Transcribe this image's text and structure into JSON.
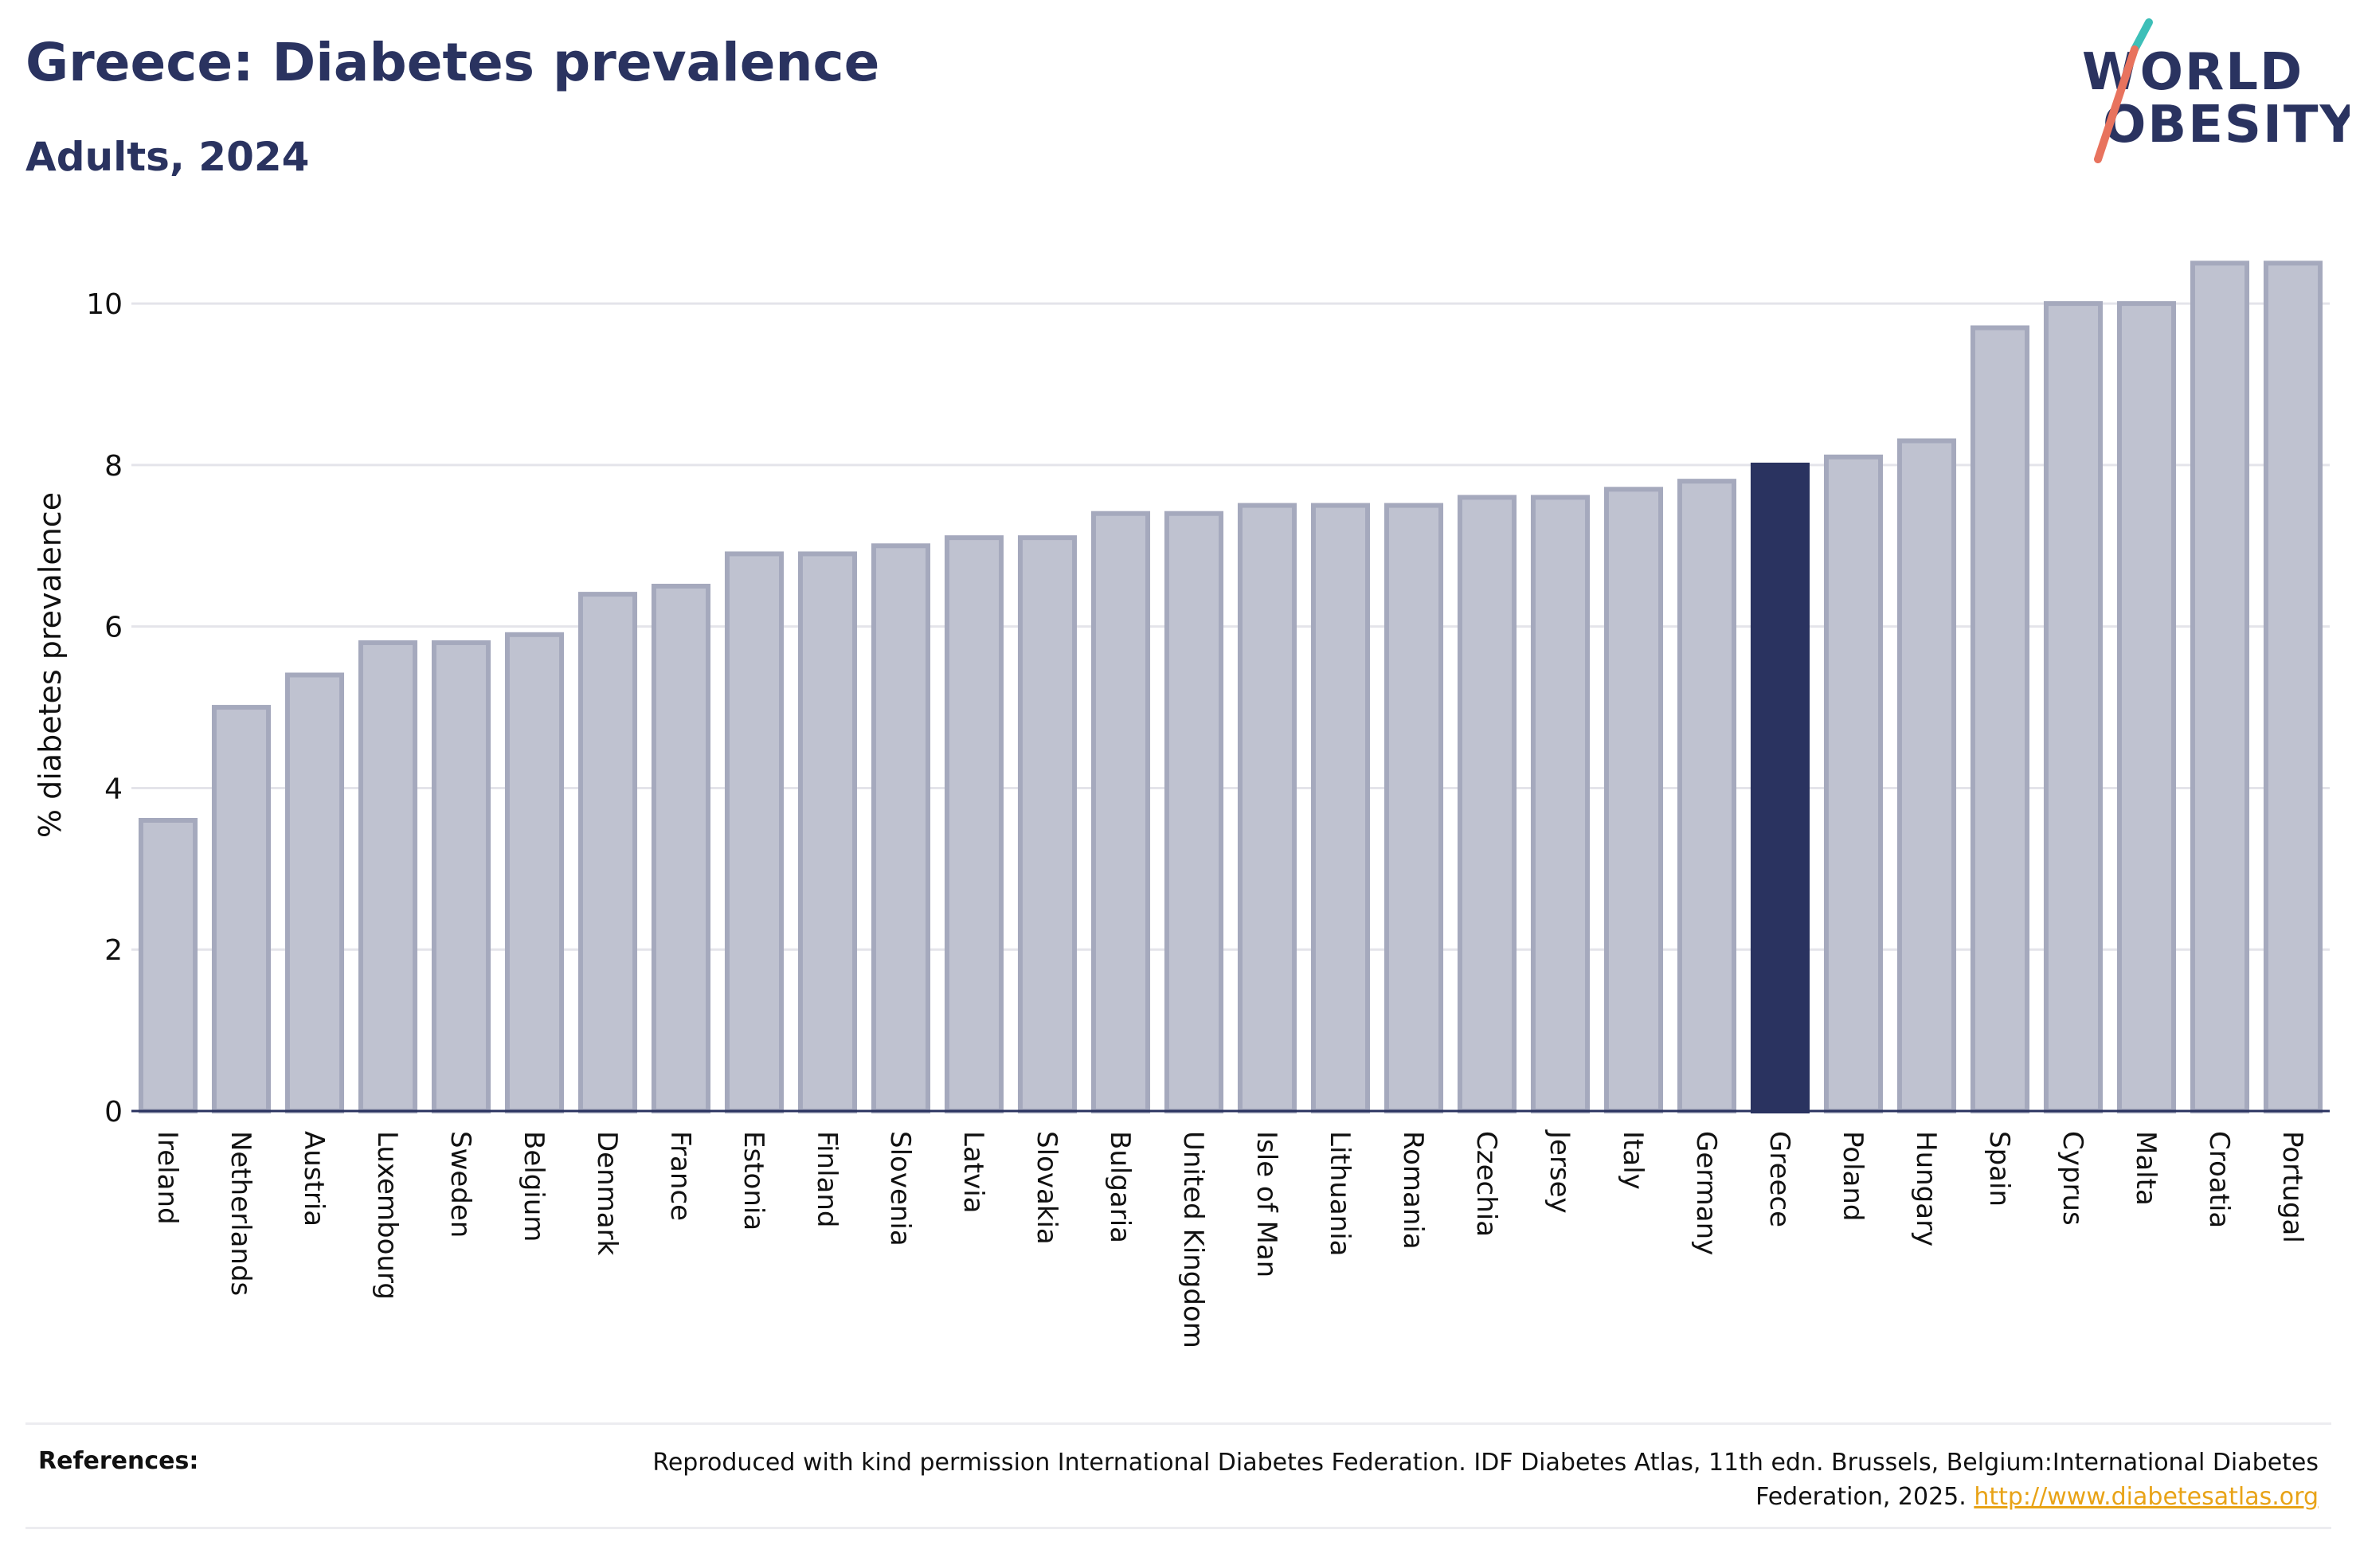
{
  "header": {
    "title": "Greece: Diabetes prevalence",
    "subtitle": "Adults, 2024"
  },
  "logo": {
    "line1": "WORLD",
    "line2": "OBESITY"
  },
  "colors": {
    "highlight": "#2a3360",
    "bar": "#bfc2d0",
    "bar_border": "#a5a9bd",
    "logo_slash": "#e8735e",
    "logo_slash_top": "#3dbfb8",
    "link": "#e8a317"
  },
  "chart_data": {
    "type": "bar",
    "title": "Greece: Diabetes prevalence",
    "subtitle": "Adults, 2024",
    "xlabel": "",
    "ylabel": "% diabetes prevalence",
    "ylim": [
      0,
      10.8
    ],
    "yticks": [
      0,
      2,
      4,
      6,
      8,
      10
    ],
    "grid": true,
    "highlight": "Greece",
    "categories": [
      "Ireland",
      "Netherlands",
      "Austria",
      "Luxembourg",
      "Sweden",
      "Belgium",
      "Denmark",
      "France",
      "Estonia",
      "Finland",
      "Slovenia",
      "Latvia",
      "Slovakia",
      "Bulgaria",
      "United Kingdom",
      "Isle of Man",
      "Lithuania",
      "Romania",
      "Czechia",
      "Jersey",
      "Italy",
      "Germany",
      "Greece",
      "Poland",
      "Hungary",
      "Spain",
      "Cyprus",
      "Malta",
      "Croatia",
      "Portugal"
    ],
    "values": [
      3.6,
      5.0,
      5.4,
      5.8,
      5.8,
      5.9,
      6.4,
      6.5,
      6.9,
      6.9,
      7.0,
      7.1,
      7.1,
      7.4,
      7.4,
      7.5,
      7.5,
      7.5,
      7.6,
      7.6,
      7.7,
      7.8,
      8.0,
      8.1,
      8.3,
      9.7,
      10.0,
      10.0,
      10.5,
      10.5
    ]
  },
  "references": {
    "label": "References:",
    "text": "Reproduced with kind permission International Diabetes Federation. IDF Diabetes Atlas, 11th edn. Brussels, Belgium:International Diabetes Federation, 2025. ",
    "link": "http://www.diabetesatlas.org"
  }
}
